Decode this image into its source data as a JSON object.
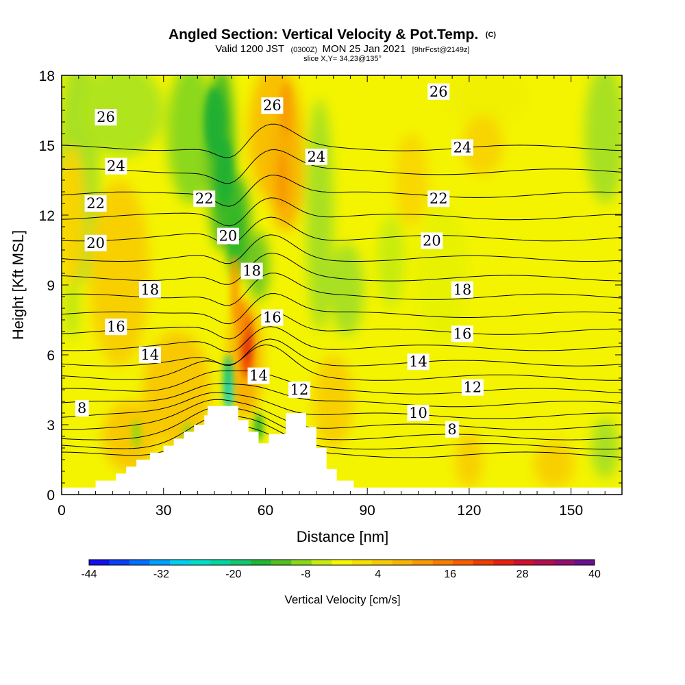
{
  "chart_data": {
    "type": "heatmap",
    "title": "Angled Section: Vertical Velocity & Pot.Temp.",
    "title_unit": "(C)",
    "subtitle_prefix": "Valid 1200 JST",
    "subtitle_zulu": "(0300Z)",
    "subtitle_date": "MON 25 Jan 2021",
    "subtitle_forecast": "[9hrFcst@2149z]",
    "slice_text": "slice X,Y= 34,23@135°",
    "xlabel": "Distance [nm]",
    "ylabel": "Height [Kft MSL]",
    "xlim": [
      0,
      165
    ],
    "ylim": [
      0,
      18
    ],
    "x_ticks": [
      0,
      30,
      60,
      90,
      120,
      150
    ],
    "y_ticks": [
      0,
      3,
      6,
      9,
      12,
      15,
      18
    ],
    "colorbar": {
      "title": "Vertical Velocity [cm/s]",
      "range": [
        -44,
        40
      ],
      "tick_values": [
        -44,
        -32,
        -20,
        -8,
        4,
        16,
        28,
        40
      ],
      "colors": [
        "#1010f0",
        "#0840f8",
        "#0070ff",
        "#00a0ff",
        "#00d0f0",
        "#00e0c8",
        "#00d8a0",
        "#10c870",
        "#20b830",
        "#50c020",
        "#8ad81a",
        "#c8ec10",
        "#f6f600",
        "#f6e000",
        "#f8ca00",
        "#f8b400",
        "#f89a00",
        "#f87c00",
        "#f85e00",
        "#f03e00",
        "#e82010",
        "#d01030",
        "#b01050",
        "#901070",
        "#6a1090"
      ]
    },
    "terrain": [
      [
        0,
        0.3
      ],
      [
        10,
        0.3
      ],
      [
        10,
        0.6
      ],
      [
        16,
        0.6
      ],
      [
        16,
        0.9
      ],
      [
        19,
        0.9
      ],
      [
        19,
        1.2
      ],
      [
        22,
        1.2
      ],
      [
        22,
        1.5
      ],
      [
        26,
        1.5
      ],
      [
        26,
        1.8
      ],
      [
        30,
        1.8
      ],
      [
        30,
        2.1
      ],
      [
        33,
        2.1
      ],
      [
        33,
        2.4
      ],
      [
        36,
        2.4
      ],
      [
        36,
        2.7
      ],
      [
        39,
        2.7
      ],
      [
        39,
        3.0
      ],
      [
        42,
        3.0
      ],
      [
        42,
        3.4
      ],
      [
        43,
        3.4
      ],
      [
        43,
        3.8
      ],
      [
        52,
        3.8
      ],
      [
        52,
        3.2
      ],
      [
        55,
        3.2
      ],
      [
        55,
        2.7
      ],
      [
        58,
        2.7
      ],
      [
        58,
        2.2
      ],
      [
        61,
        2.2
      ],
      [
        61,
        2.6
      ],
      [
        66,
        2.6
      ],
      [
        66,
        3.5
      ],
      [
        72,
        3.5
      ],
      [
        72,
        2.9
      ],
      [
        75,
        2.9
      ],
      [
        75,
        2.0
      ],
      [
        78,
        2.0
      ],
      [
        78,
        1.1
      ],
      [
        81,
        1.1
      ],
      [
        81,
        0.6
      ],
      [
        86,
        0.6
      ],
      [
        86,
        0.3
      ],
      [
        165,
        0.3
      ]
    ],
    "contour_labels": [
      {
        "text": "26",
        "x": 13,
        "y": 16.2
      },
      {
        "text": "26",
        "x": 62,
        "y": 16.7
      },
      {
        "text": "26",
        "x": 111,
        "y": 17.3
      },
      {
        "text": "24",
        "x": 16,
        "y": 14.1
      },
      {
        "text": "24",
        "x": 75,
        "y": 14.5
      },
      {
        "text": "24",
        "x": 118,
        "y": 14.9
      },
      {
        "text": "22",
        "x": 10,
        "y": 12.5
      },
      {
        "text": "22",
        "x": 42,
        "y": 12.7
      },
      {
        "text": "22",
        "x": 111,
        "y": 12.7
      },
      {
        "text": "20",
        "x": 10,
        "y": 10.8
      },
      {
        "text": "20",
        "x": 49,
        "y": 11.1
      },
      {
        "text": "20",
        "x": 109,
        "y": 10.9
      },
      {
        "text": "18",
        "x": 26,
        "y": 8.8
      },
      {
        "text": "18",
        "x": 56,
        "y": 9.6
      },
      {
        "text": "18",
        "x": 118,
        "y": 8.8
      },
      {
        "text": "16",
        "x": 16,
        "y": 7.2
      },
      {
        "text": "16",
        "x": 62,
        "y": 7.6
      },
      {
        "text": "16",
        "x": 118,
        "y": 6.9
      },
      {
        "text": "14",
        "x": 26,
        "y": 6.0
      },
      {
        "text": "14",
        "x": 58,
        "y": 5.1
      },
      {
        "text": "14",
        "x": 105,
        "y": 5.7
      },
      {
        "text": "12",
        "x": 70,
        "y": 4.5
      },
      {
        "text": "12",
        "x": 121,
        "y": 4.6
      },
      {
        "text": "10",
        "x": 105,
        "y": 3.5
      },
      {
        "text": "8",
        "x": 6,
        "y": 3.7
      },
      {
        "text": "8",
        "x": 115,
        "y": 2.8
      }
    ],
    "theta_levels": [
      8,
      9,
      10,
      11,
      12,
      13,
      14,
      15,
      16,
      17,
      18,
      19,
      20,
      21,
      22,
      23,
      24,
      25,
      26,
      27
    ],
    "grid": false
  }
}
